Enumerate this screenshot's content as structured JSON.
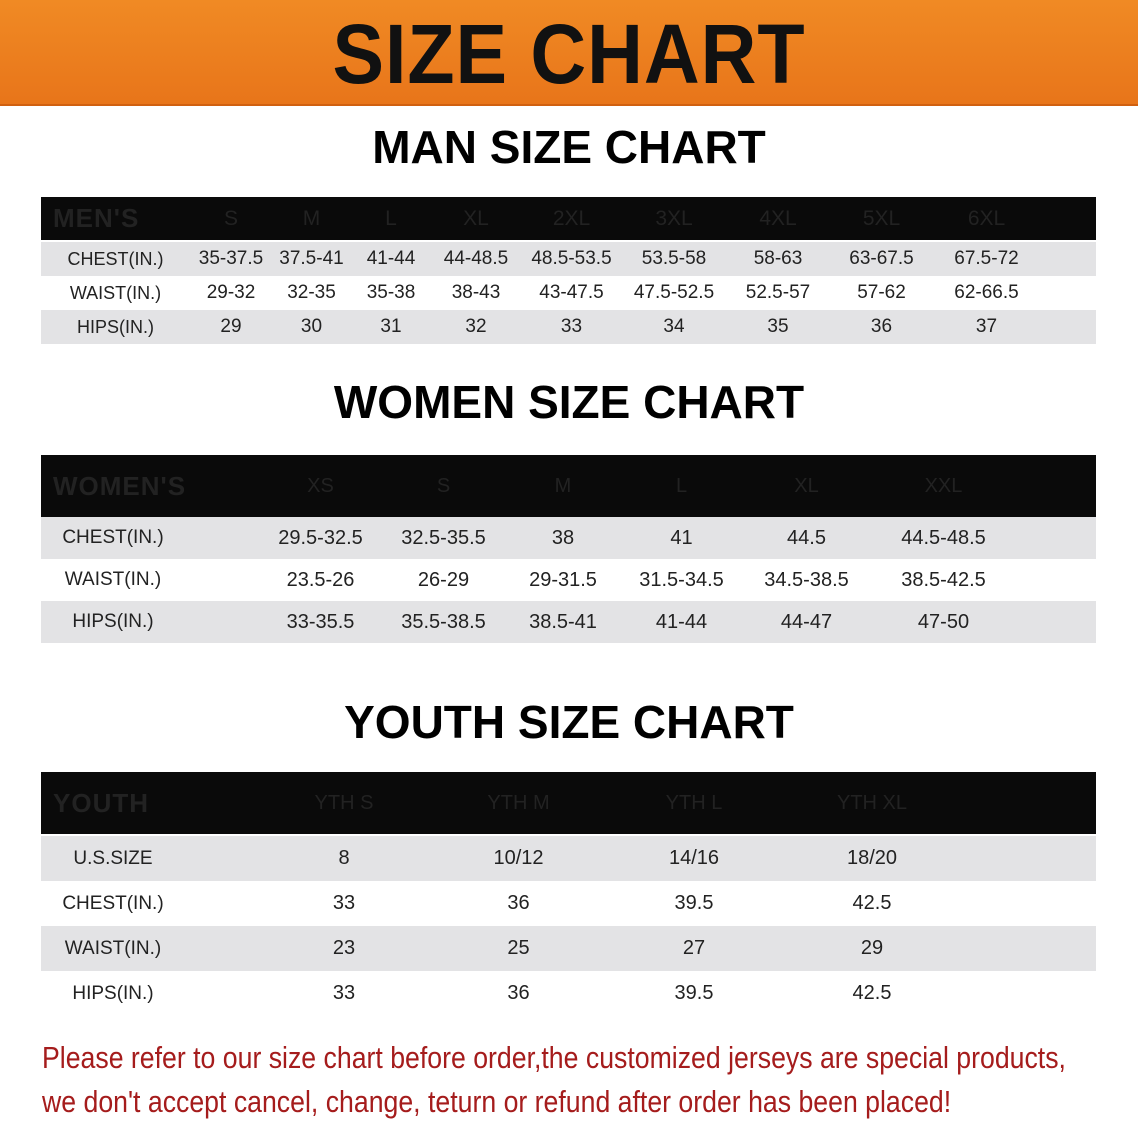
{
  "title": "SIZE CHART",
  "colors": {
    "banner": "#ec7f1f",
    "header_row": "#0a0a0a",
    "stripe": "#e3e3e5",
    "note": "#a51c1c"
  },
  "men": {
    "heading": "MAN SIZE CHART",
    "header": [
      "MEN'S",
      "S",
      "M",
      "L",
      "XL",
      "2XL",
      "3XL",
      "4XL",
      "5XL",
      "6XL"
    ],
    "rows": [
      [
        "CHEST(IN.)",
        "35-37.5",
        "37.5-41",
        "41-44",
        "44-48.5",
        "48.5-53.5",
        "53.5-58",
        "58-63",
        "63-67.5",
        "67.5-72"
      ],
      [
        "WAIST(IN.)",
        "29-32",
        "32-35",
        "35-38",
        "38-43",
        "43-47.5",
        "47.5-52.5",
        "52.5-57",
        "57-62",
        "62-66.5"
      ],
      [
        "HIPS(IN.)",
        "29",
        "30",
        "31",
        "32",
        "33",
        "34",
        "35",
        "36",
        "37"
      ]
    ]
  },
  "women": {
    "heading": "WOMEN SIZE CHART",
    "header": [
      "WOMEN'S",
      "XS",
      "S",
      "M",
      "L",
      "XL",
      "XXL"
    ],
    "rows": [
      [
        "CHEST(IN.)",
        "29.5-32.5",
        "32.5-35.5",
        "38",
        "41",
        "44.5",
        "44.5-48.5"
      ],
      [
        "WAIST(IN.)",
        "23.5-26",
        "26-29",
        "29-31.5",
        "31.5-34.5",
        "34.5-38.5",
        "38.5-42.5"
      ],
      [
        "HIPS(IN.)",
        "33-35.5",
        "35.5-38.5",
        "38.5-41",
        "41-44",
        "44-47",
        "47-50"
      ]
    ]
  },
  "youth": {
    "heading": "YOUTH SIZE CHART",
    "header": [
      "YOUTH",
      "YTH S",
      "YTH M",
      "YTH L",
      "YTH XL"
    ],
    "rows": [
      [
        "U.S.SIZE",
        "8",
        "10/12",
        "14/16",
        "18/20"
      ],
      [
        "CHEST(IN.)",
        "33",
        "36",
        "39.5",
        "42.5"
      ],
      [
        "WAIST(IN.)",
        "23",
        "25",
        "27",
        "29"
      ],
      [
        "HIPS(IN.)",
        "33",
        "36",
        "39.5",
        "42.5"
      ]
    ]
  },
  "note": [
    "Please refer to our size chart before order,the customized jerseys are special products,",
    "we don't accept cancel, change, teturn or refund after order has been placed!"
  ]
}
